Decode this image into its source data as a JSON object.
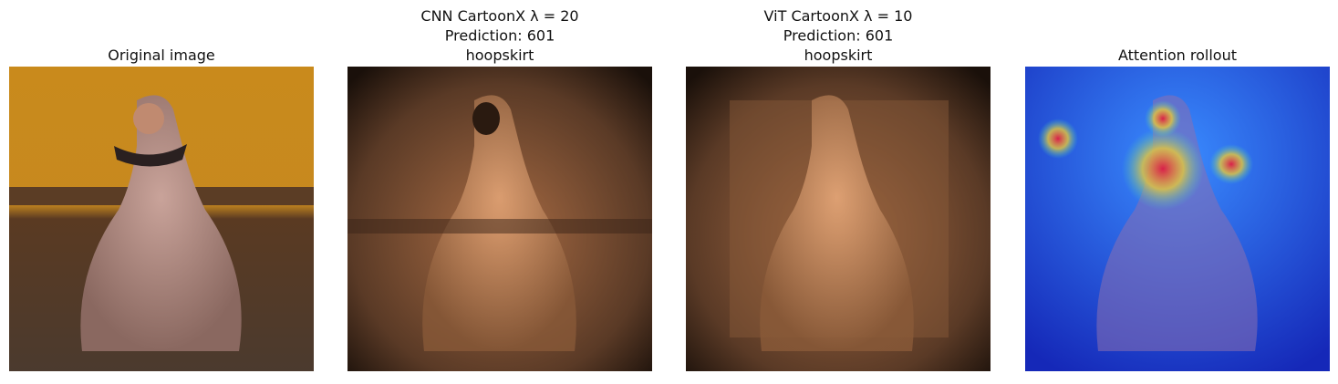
{
  "panels": [
    {
      "title": [
        "Original image"
      ]
    },
    {
      "title": [
        "CNN CartoonX λ = 20",
        "Prediction: 601",
        "hoopskirt"
      ]
    },
    {
      "title": [
        "ViT CartoonX λ = 10",
        "Prediction: 601",
        "hoopskirt"
      ]
    },
    {
      "title": [
        "Attention rollout"
      ]
    }
  ]
}
